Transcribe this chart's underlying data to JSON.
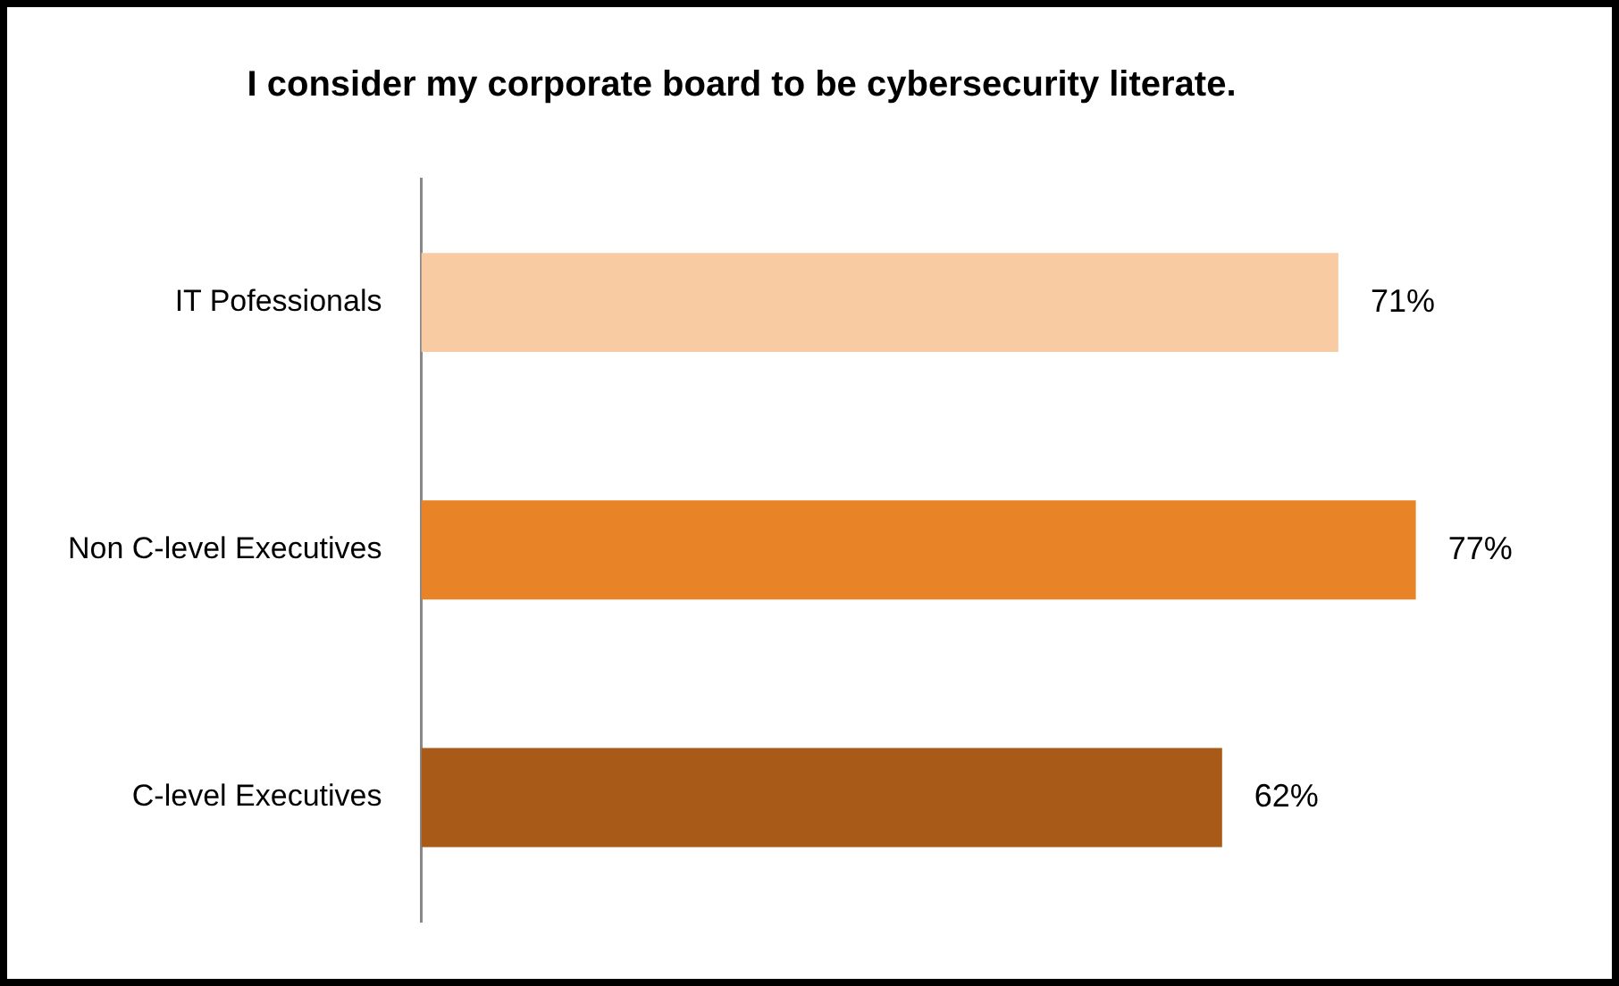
{
  "chart_data": {
    "type": "bar",
    "orientation": "horizontal",
    "title": "I consider my corporate board to be cybersecurity literate.",
    "categories": [
      "IT Pofessionals",
      "Non C-level Executives",
      "C-level Executives"
    ],
    "values": [
      71,
      77,
      62
    ],
    "colors": [
      "#f9cba3",
      "#e98327",
      "#a85a18"
    ],
    "value_labels": [
      "71%",
      "77%",
      "62%"
    ],
    "tick_labels": "y",
    "grid": false,
    "legend": false
  }
}
